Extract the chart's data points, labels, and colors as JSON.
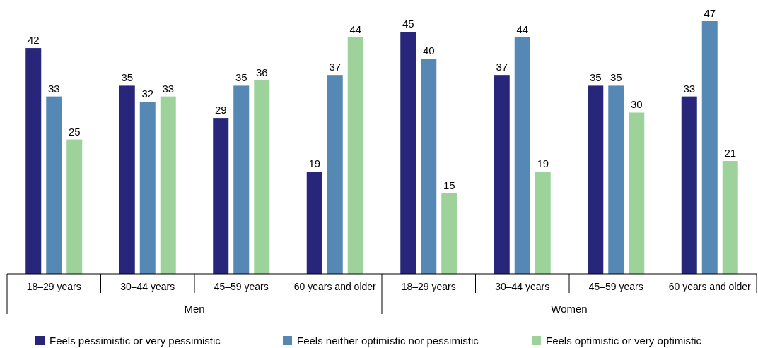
{
  "chart_data": {
    "type": "bar",
    "categories": [
      "18–29 years",
      "30–44 years",
      "45–59 years",
      "60 years and older",
      "18–29 years",
      "30–44 years",
      "45–59 years",
      "60 years and older"
    ],
    "series": [
      {
        "name": "Feels pessimistic or very pessimistic",
        "color": "#27267a",
        "values": [
          42,
          35,
          29,
          19,
          45,
          37,
          35,
          33
        ]
      },
      {
        "name": "Feels neither optimistic nor pessimistic",
        "color": "#5588b5",
        "values": [
          33,
          32,
          35,
          37,
          40,
          44,
          35,
          47
        ]
      },
      {
        "name": "Feels optimistic or very optimistic",
        "color": "#9dd39a",
        "values": [
          25,
          33,
          36,
          44,
          15,
          19,
          30,
          21
        ]
      }
    ],
    "data_labels": true,
    "legend": "bottom",
    "annotations": [
      "Men",
      "Women"
    ]
  }
}
